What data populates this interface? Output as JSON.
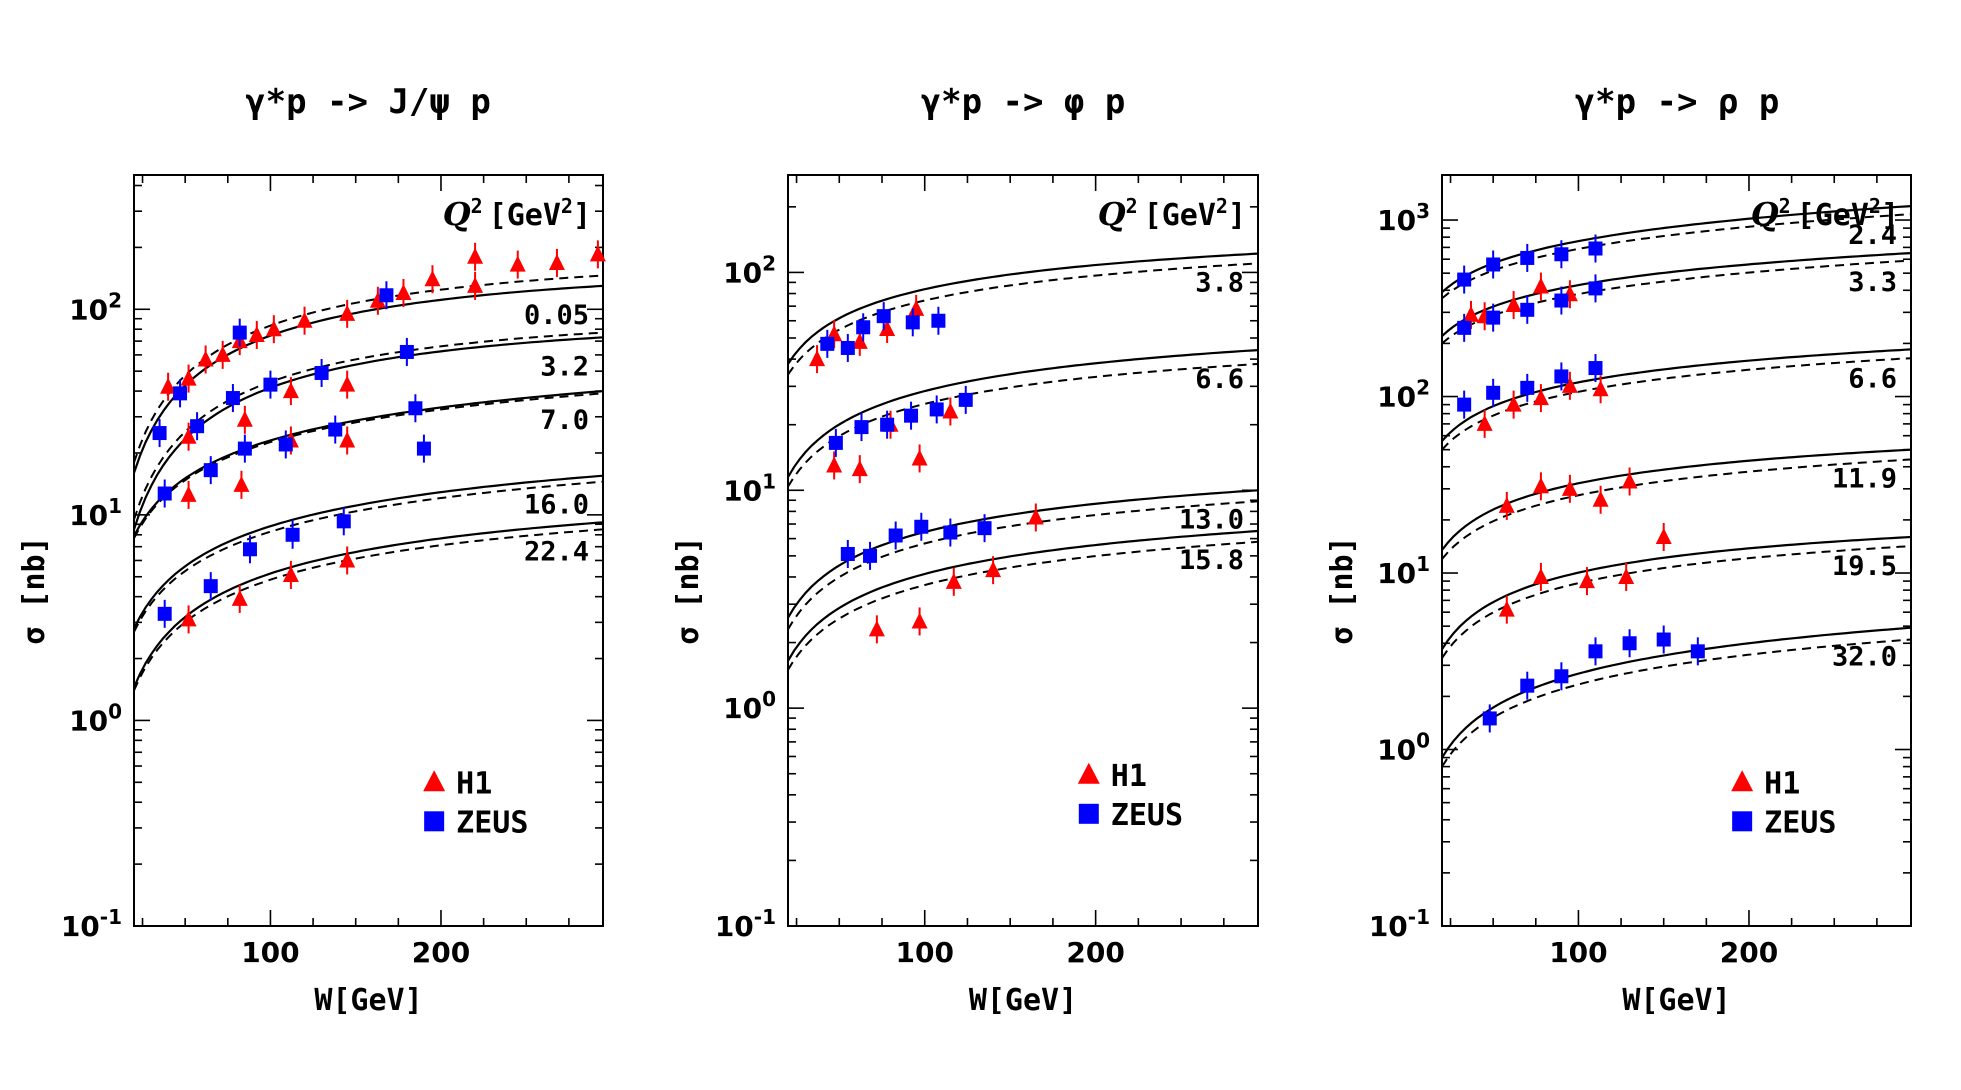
{
  "chart_data": [
    {
      "type": "scatter",
      "title": "γ*p -> J/ψ p",
      "xlabel": "W[GeV]",
      "ylabel": "σ [nb]",
      "xlim": [
        20,
        295
      ],
      "ylim": [
        0.1,
        450
      ],
      "yscale": "log",
      "xticks": [
        "100",
        "200"
      ],
      "yticks": [
        "10",
        "10",
        "10",
        "10"
      ],
      "ytick_exp": [
        "-1",
        "0",
        "1",
        "2"
      ],
      "q2_header": [
        "Q",
        "2",
        "[GeV",
        "2",
        "]"
      ],
      "legend": [
        "H1",
        "ZEUS"
      ],
      "curves": [
        {
          "label": "0.05",
          "solid": [
            [
              20,
              16
            ],
            [
              120,
              84
            ],
            [
              295,
              130
            ]
          ],
          "dashed": [
            [
              20,
              18
            ],
            [
              120,
              94
            ],
            [
              295,
              146
            ]
          ]
        },
        {
          "label": "3.2",
          "solid": [
            [
              20,
              8.5
            ],
            [
              120,
              47
            ],
            [
              295,
              73
            ]
          ],
          "dashed": [
            [
              20,
              9.5
            ],
            [
              120,
              50
            ],
            [
              295,
              77
            ]
          ]
        },
        {
          "label": "7.0",
          "solid": [
            [
              20,
              7.9
            ],
            [
              120,
              25.5
            ],
            [
              295,
              40
            ]
          ],
          "dashed": [
            [
              20,
              7.7
            ],
            [
              120,
              25
            ],
            [
              295,
              39
            ]
          ]
        },
        {
          "label": "16.0",
          "solid": [
            [
              20,
              2.8
            ],
            [
              120,
              9.8
            ],
            [
              295,
              15.5
            ]
          ],
          "dashed": [
            [
              20,
              2.7
            ],
            [
              120,
              9.2
            ],
            [
              295,
              14.5
            ]
          ]
        },
        {
          "label": "22.4",
          "solid": [
            [
              20,
              1.45
            ],
            [
              120,
              5.8
            ],
            [
              295,
              9.2
            ]
          ],
          "dashed": [
            [
              20,
              1.4
            ],
            [
              120,
              5.4
            ],
            [
              295,
              8.5
            ]
          ]
        }
      ],
      "series": [
        {
          "name": "H1",
          "marker": "triangle",
          "color": "#ff0000",
          "points": [
            [
              40,
              42
            ],
            [
              52,
              46
            ],
            [
              62,
              57
            ],
            [
              72,
              60
            ],
            [
              82,
              70
            ],
            [
              92,
              75
            ],
            [
              102,
              80
            ],
            [
              120,
              88
            ],
            [
              145,
              95
            ],
            [
              163,
              110
            ],
            [
              178,
              120
            ],
            [
              195,
              140
            ],
            [
              220,
              180
            ],
            [
              245,
              165
            ],
            [
              268,
              168
            ],
            [
              292,
              185
            ],
            [
              220,
              130
            ],
            [
              52,
              24
            ],
            [
              85,
              29
            ],
            [
              112,
              40
            ],
            [
              145,
              43
            ],
            [
              112,
              23
            ],
            [
              145,
              23
            ],
            [
              52,
              12.5
            ],
            [
              83,
              14
            ],
            [
              52,
              3.1
            ],
            [
              82,
              3.9
            ],
            [
              112,
              5.1
            ],
            [
              145,
              6.0
            ]
          ]
        },
        {
          "name": "ZEUS",
          "marker": "square",
          "color": "#0000ff",
          "points": [
            [
              35,
              25
            ],
            [
              47,
              39
            ],
            [
              57,
              27
            ],
            [
              82,
              77
            ],
            [
              100,
              43
            ],
            [
              78,
              37
            ],
            [
              130,
              49
            ],
            [
              180,
              62
            ],
            [
              168,
              117
            ],
            [
              85,
              21
            ],
            [
              109,
              22
            ],
            [
              138,
              26
            ],
            [
              185,
              33
            ],
            [
              190,
              21
            ],
            [
              38,
              12.7
            ],
            [
              65,
              16.5
            ],
            [
              38,
              3.3
            ],
            [
              65,
              4.5
            ],
            [
              88,
              6.8
            ],
            [
              113,
              8.0
            ],
            [
              143,
              9.3
            ]
          ]
        }
      ]
    },
    {
      "type": "scatter",
      "title": "γ*p -> φ p",
      "xlabel": "W[GeV]",
      "ylabel": "σ [nb]",
      "xlim": [
        20,
        295
      ],
      "ylim": [
        0.1,
        280
      ],
      "yscale": "log",
      "xticks": [
        "100",
        "200"
      ],
      "yticks": [
        "10",
        "10",
        "10",
        "10"
      ],
      "ytick_exp": [
        "-1",
        "0",
        "1",
        "2"
      ],
      "q2_header": [
        "Q",
        "2",
        "[GeV",
        "2",
        "]"
      ],
      "legend": [
        "H1",
        "ZEUS"
      ],
      "curves": [
        {
          "label": "3.8",
          "solid": [
            [
              20,
              38
            ],
            [
              120,
              90
            ],
            [
              295,
              122
            ]
          ],
          "dashed": [
            [
              20,
              34
            ],
            [
              120,
              80
            ],
            [
              295,
              110
            ]
          ]
        },
        {
          "label": "6.6",
          "solid": [
            [
              20,
              11.5
            ],
            [
              120,
              31
            ],
            [
              295,
              44
            ]
          ],
          "dashed": [
            [
              20,
              10.4
            ],
            [
              120,
              27
            ],
            [
              295,
              38
            ]
          ]
        },
        {
          "label": "13.0",
          "solid": [
            [
              20,
              2.6
            ],
            [
              120,
              7
            ],
            [
              295,
              10
            ]
          ],
          "dashed": [
            [
              20,
              2.3
            ],
            [
              120,
              6.2
            ],
            [
              295,
              8.9
            ]
          ]
        },
        {
          "label": "15.8",
          "solid": [
            [
              20,
              1.65
            ],
            [
              120,
              4.5
            ],
            [
              295,
              6.5
            ]
          ],
          "dashed": [
            [
              20,
              1.5
            ],
            [
              120,
              4.0
            ],
            [
              295,
              5.8
            ]
          ]
        }
      ],
      "series": [
        {
          "name": "H1",
          "marker": "triangle",
          "color": "#ff0000",
          "points": [
            [
              37,
              40
            ],
            [
              47,
              52
            ],
            [
              62,
              48
            ],
            [
              78,
              55
            ],
            [
              95,
              68
            ],
            [
              47,
              13
            ],
            [
              62,
              12.5
            ],
            [
              80,
              20
            ],
            [
              97,
              14
            ],
            [
              115,
              23
            ],
            [
              165,
              7.5
            ],
            [
              72,
              2.3
            ],
            [
              97,
              2.5
            ],
            [
              117,
              3.8
            ],
            [
              140,
              4.3
            ]
          ]
        },
        {
          "name": "ZEUS",
          "marker": "square",
          "color": "#0000ff",
          "points": [
            [
              43,
              47
            ],
            [
              55,
              45
            ],
            [
              64,
              56
            ],
            [
              76,
              63
            ],
            [
              93,
              59
            ],
            [
              108,
              60
            ],
            [
              48,
              16.5
            ],
            [
              63,
              19.5
            ],
            [
              78,
              20
            ],
            [
              92,
              22
            ],
            [
              107,
              23.5
            ],
            [
              124,
              26
            ],
            [
              55,
              5.1
            ],
            [
              68,
              5.0
            ],
            [
              83,
              6.2
            ],
            [
              98,
              6.8
            ],
            [
              115,
              6.4
            ],
            [
              135,
              6.7
            ]
          ]
        }
      ]
    },
    {
      "type": "scatter",
      "title": "γ*p -> ρ p",
      "xlabel": "W[GeV]",
      "ylabel": "σ [nb]",
      "xlim": [
        20,
        295
      ],
      "ylim": [
        0.1,
        1800
      ],
      "yscale": "log",
      "xticks": [
        "100",
        "200"
      ],
      "yticks": [
        "10",
        "10",
        "10",
        "10",
        "10"
      ],
      "ytick_exp": [
        "-1",
        "0",
        "1",
        "2",
        "3"
      ],
      "q2_header": [
        "Q",
        "2",
        "[GeV",
        "2",
        "]"
      ],
      "legend": [
        "H1",
        "ZEUS"
      ],
      "curves": [
        {
          "label": "2.4",
          "solid": [
            [
              20,
              390
            ],
            [
              120,
              820
            ],
            [
              295,
              1200
            ]
          ],
          "dashed": [
            [
              20,
              360
            ],
            [
              120,
              740
            ],
            [
              295,
              1080
            ]
          ]
        },
        {
          "label": "3.3",
          "solid": [
            [
              20,
              220
            ],
            [
              120,
              460
            ],
            [
              295,
              650
            ]
          ],
          "dashed": [
            [
              20,
              200
            ],
            [
              120,
              410
            ],
            [
              295,
              590
            ]
          ]
        },
        {
          "label": "6.6",
          "solid": [
            [
              20,
              56
            ],
            [
              120,
              130
            ],
            [
              295,
              185
            ]
          ],
          "dashed": [
            [
              20,
              50
            ],
            [
              120,
              115
            ],
            [
              295,
              165
            ]
          ]
        },
        {
          "label": "11.9",
          "solid": [
            [
              20,
              13.5
            ],
            [
              120,
              35
            ],
            [
              295,
              50
            ]
          ],
          "dashed": [
            [
              20,
              12
            ],
            [
              120,
              30
            ],
            [
              295,
              44
            ]
          ]
        },
        {
          "label": "19.5",
          "solid": [
            [
              20,
              3.7
            ],
            [
              120,
              11
            ],
            [
              295,
              16
            ]
          ],
          "dashed": [
            [
              20,
              3.3
            ],
            [
              120,
              9.6
            ],
            [
              295,
              14.2
            ]
          ]
        },
        {
          "label": "32.0",
          "solid": [
            [
              20,
              0.9
            ],
            [
              120,
              3.0
            ],
            [
              295,
              4.9
            ]
          ],
          "dashed": [
            [
              20,
              0.8
            ],
            [
              120,
              2.6
            ],
            [
              295,
              4.2
            ]
          ]
        }
      ],
      "series": [
        {
          "name": "H1",
          "marker": "triangle",
          "color": "#ff0000",
          "points": [
            [
              37,
              290
            ],
            [
              45,
              285
            ],
            [
              62,
              330
            ],
            [
              78,
              420
            ],
            [
              95,
              380
            ],
            [
              45,
              70
            ],
            [
              62,
              90
            ],
            [
              78,
              98
            ],
            [
              95,
              115
            ],
            [
              113,
              110
            ],
            [
              58,
              24
            ],
            [
              78,
              31
            ],
            [
              95,
              30
            ],
            [
              113,
              26
            ],
            [
              130,
              33
            ],
            [
              150,
              16
            ],
            [
              58,
              6.2
            ],
            [
              78,
              9.5
            ],
            [
              105,
              9.0
            ],
            [
              128,
              9.5
            ]
          ]
        },
        {
          "name": "ZEUS",
          "marker": "square",
          "color": "#0000ff",
          "points": [
            [
              33,
              460
            ],
            [
              50,
              560
            ],
            [
              70,
              610
            ],
            [
              90,
              640
            ],
            [
              110,
              690
            ],
            [
              33,
              245
            ],
            [
              50,
              280
            ],
            [
              70,
              310
            ],
            [
              90,
              350
            ],
            [
              110,
              410
            ],
            [
              33,
              90
            ],
            [
              50,
              105
            ],
            [
              70,
              112
            ],
            [
              90,
              130
            ],
            [
              110,
              145
            ],
            [
              48,
              1.5
            ],
            [
              70,
              2.3
            ],
            [
              90,
              2.6
            ],
            [
              110,
              3.6
            ],
            [
              130,
              4.0
            ],
            [
              150,
              4.2
            ],
            [
              170,
              3.6
            ]
          ]
        }
      ]
    }
  ]
}
